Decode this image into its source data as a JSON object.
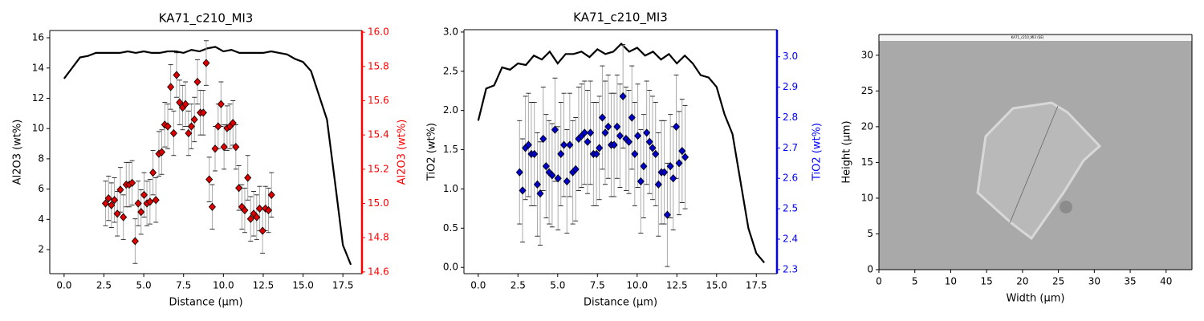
{
  "chart_data": [
    {
      "type": "combo",
      "title": "KA71_c210_MI3",
      "xlabel": "Distance (µm)",
      "ylabel": "Al2O3 (wt%)",
      "y2label": "Al2O3 (wt%)",
      "y2color": "#ff0000",
      "xlim": [
        -0.9,
        18.7
      ],
      "ylim": [
        0.41,
        16.48
      ],
      "y2lim": [
        14.59,
        16.01
      ],
      "xticks": [
        {
          "value": 0,
          "label": "0.0"
        },
        2.5,
        {
          "value": 5,
          "label": "5.0"
        },
        7.5,
        {
          "value": 10,
          "label": "10.0"
        },
        12.5,
        {
          "value": 15,
          "label": "15.0"
        },
        17.5
      ],
      "yticks": [
        2,
        4,
        6,
        8,
        10,
        12,
        14,
        16
      ],
      "y2ticks": [
        14.6,
        14.8,
        {
          "value": 15,
          "label": "15.0"
        },
        15.2,
        15.4,
        15.6,
        15.8,
        {
          "value": 16,
          "label": "16.0"
        }
      ],
      "series": [
        {
          "type": "line",
          "color": "#000000",
          "x": [
            0,
            0.5,
            1,
            1.5,
            2,
            2.5,
            3,
            3.5,
            4,
            4.5,
            5,
            5.5,
            6,
            6.5,
            7,
            7.5,
            8,
            8.5,
            9,
            9.5,
            10,
            10.5,
            11,
            11.5,
            12,
            12.5,
            13,
            13.5,
            14,
            14.5,
            15,
            15.5,
            16,
            16.5,
            17,
            17.5,
            18
          ],
          "values": [
            13.3,
            14.0,
            14.7,
            14.8,
            15.0,
            15.0,
            15.0,
            15.0,
            15.1,
            15.0,
            15.1,
            15.0,
            15.0,
            15.1,
            15.1,
            15.0,
            15.2,
            15.1,
            15.3,
            15.4,
            15.1,
            15.2,
            15.0,
            15.0,
            15.0,
            15.0,
            15.1,
            15.0,
            14.9,
            14.6,
            14.4,
            13.8,
            12.2,
            10.6,
            6.5,
            2.3,
            1.0
          ]
        },
        {
          "type": "scatter",
          "axis": "y2",
          "color": "#dd0000",
          "error": 0.13,
          "x": [
            2.6,
            2.79,
            2.97,
            3.16,
            3.34,
            3.53,
            3.72,
            3.9,
            4.09,
            4.27,
            4.46,
            4.65,
            4.83,
            5.02,
            5.2,
            5.39,
            5.58,
            5.76,
            5.95,
            6.13,
            6.32,
            6.51,
            6.69,
            6.88,
            7.06,
            7.25,
            7.44,
            7.62,
            7.81,
            7.99,
            8.18,
            8.37,
            8.55,
            8.74,
            8.92,
            9.11,
            9.3,
            9.48,
            9.67,
            9.85,
            10.04,
            10.23,
            10.41,
            10.6,
            10.78,
            10.97,
            11.16,
            11.34,
            11.53,
            11.71,
            11.9,
            12.09,
            12.27,
            12.46,
            12.64,
            12.83,
            13.02
          ],
          "values": [
            15.0,
            15.03,
            14.99,
            15.02,
            14.94,
            15.08,
            14.92,
            15.11,
            15.11,
            15.12,
            14.78,
            15.0,
            14.95,
            15.05,
            15.0,
            15.01,
            15.18,
            15.02,
            15.29,
            15.3,
            15.46,
            15.45,
            15.68,
            15.41,
            15.75,
            15.59,
            15.56,
            15.58,
            15.41,
            15.45,
            15.49,
            15.71,
            15.53,
            15.53,
            15.82,
            15.14,
            14.98,
            15.32,
            15.45,
            15.58,
            15.33,
            15.44,
            15.45,
            15.47,
            15.33,
            15.09,
            14.98,
            14.96,
            15.15,
            14.91,
            14.94,
            14.92,
            14.97,
            14.84,
            14.97,
            14.96,
            15.05
          ]
        }
      ]
    },
    {
      "type": "combo",
      "title": "KA71_c210_MI3",
      "xlabel": "Distance (µm)",
      "ylabel": "TiO2 (wt%)",
      "y2label": "TiO2 (wt%)",
      "y2color": "#0000ff",
      "xlim": [
        -0.9,
        18.8
      ],
      "ylim": [
        -0.08,
        3.03
      ],
      "y2lim": [
        2.2865,
        3.089
      ],
      "xticks": [
        {
          "value": 0,
          "label": "0.0"
        },
        2.5,
        {
          "value": 5,
          "label": "5.0"
        },
        7.5,
        {
          "value": 10,
          "label": "10.0"
        },
        12.5,
        {
          "value": 15,
          "label": "15.0"
        },
        17.5
      ],
      "yticks": [
        {
          "value": 0,
          "label": "0.0"
        },
        0.5,
        {
          "value": 1,
          "label": "1.0"
        },
        1.5,
        {
          "value": 2,
          "label": "2.0"
        },
        2.5,
        {
          "value": 3,
          "label": "3.0"
        }
      ],
      "y2ticks": [
        2.3,
        2.4,
        2.5,
        2.6,
        2.7,
        2.8,
        2.9,
        {
          "value": 3,
          "label": "3.0"
        }
      ],
      "series": [
        {
          "type": "line",
          "color": "#000000",
          "x": [
            0,
            0.5,
            1,
            1.5,
            2,
            2.5,
            3,
            3.5,
            4,
            4.5,
            5,
            5.5,
            6,
            6.5,
            7,
            7.5,
            8,
            8.5,
            9,
            9.5,
            10,
            10.5,
            11,
            11.5,
            12,
            12.5,
            13,
            13.5,
            14,
            14.5,
            15,
            15.5,
            16,
            16.5,
            17,
            17.5,
            18
          ],
          "values": [
            1.87,
            2.28,
            2.32,
            2.55,
            2.52,
            2.6,
            2.58,
            2.7,
            2.65,
            2.75,
            2.6,
            2.72,
            2.72,
            2.75,
            2.68,
            2.78,
            2.72,
            2.75,
            2.85,
            2.75,
            2.8,
            2.7,
            2.75,
            2.65,
            2.72,
            2.6,
            2.7,
            2.6,
            2.45,
            2.42,
            2.3,
            1.95,
            1.7,
            1.1,
            0.5,
            0.18,
            0.06
          ]
        },
        {
          "type": "scatter",
          "axis": "y2",
          "color": "#0000cc",
          "error": 0.17,
          "x": [
            2.6,
            2.79,
            2.97,
            3.16,
            3.34,
            3.53,
            3.72,
            3.9,
            4.09,
            4.27,
            4.46,
            4.65,
            4.83,
            5.02,
            5.2,
            5.39,
            5.58,
            5.76,
            5.95,
            6.13,
            6.32,
            6.51,
            6.69,
            6.88,
            7.06,
            7.25,
            7.44,
            7.62,
            7.81,
            7.99,
            8.18,
            8.37,
            8.55,
            8.74,
            8.92,
            9.11,
            9.3,
            9.48,
            9.67,
            9.85,
            10.04,
            10.23,
            10.41,
            10.6,
            10.78,
            10.97,
            11.16,
            11.34,
            11.53,
            11.71,
            11.9,
            12.09,
            12.27,
            12.46,
            12.64,
            12.83,
            13.02
          ],
          "values": [
            2.62,
            2.56,
            2.7,
            2.71,
            2.68,
            2.68,
            2.58,
            2.55,
            2.73,
            2.64,
            2.62,
            2.61,
            2.76,
            2.6,
            2.68,
            2.71,
            2.59,
            2.71,
            2.62,
            2.63,
            2.73,
            2.74,
            2.75,
            2.72,
            2.75,
            2.68,
            2.68,
            2.7,
            2.8,
            2.75,
            2.77,
            2.71,
            2.71,
            2.77,
            2.74,
            2.87,
            2.73,
            2.72,
            2.8,
            2.68,
            2.74,
            2.59,
            2.64,
            2.75,
            2.72,
            2.7,
            2.68,
            2.58,
            2.62,
            2.62,
            2.48,
            2.64,
            2.6,
            2.77,
            2.65,
            2.69,
            2.67
          ]
        }
      ]
    },
    {
      "type": "image",
      "xlabel": "Width (µm)",
      "ylabel": "Height (µm)",
      "image_caption": "KA71_c210_MI3 (SE)",
      "xlim": [
        0,
        43.6
      ],
      "ylim": [
        0,
        32.9
      ],
      "xticks": [
        0,
        5,
        10,
        15,
        20,
        25,
        30,
        35,
        40
      ],
      "yticks": [
        0,
        5,
        10,
        15,
        20,
        25,
        30
      ]
    }
  ]
}
